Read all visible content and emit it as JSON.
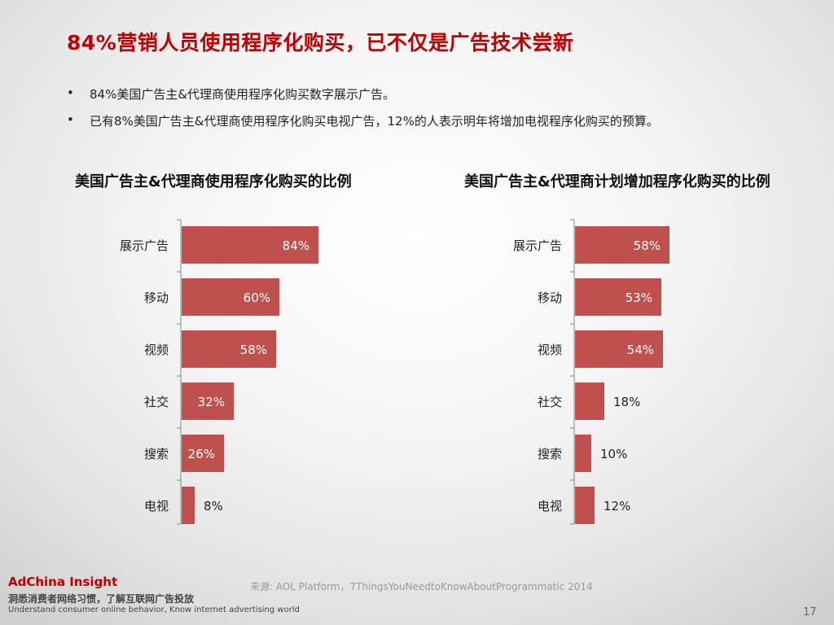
{
  "title": "84%营销人员使用程序化购买，已不仅是广告技术尝新",
  "bullets": [
    "84%美国广告主&代理商使用程序化购买数字展示广告。",
    "已有8%美国广告主&代理商使用程序化购买电视广告，12%的人表示明年将增加电视程序化购买的预算。"
  ],
  "bullet_marker": "•",
  "chart_data": [
    {
      "type": "bar",
      "orientation": "horizontal",
      "title": "美国广告主&代理商使用程序化购买的比例",
      "categories": [
        "展示广告",
        "移动",
        "视频",
        "社交",
        "搜索",
        "电视"
      ],
      "values": [
        84,
        60,
        58,
        32,
        26,
        8
      ],
      "value_labels": [
        "84%",
        "60%",
        "58%",
        "32%",
        "26%",
        "8%"
      ],
      "xlim": [
        0,
        100
      ],
      "bar_color": "#c0504d"
    },
    {
      "type": "bar",
      "orientation": "horizontal",
      "title": "美国广告主&代理商计划增加程序化购买的比例",
      "categories": [
        "展示广告",
        "移动",
        "视频",
        "社交",
        "搜索",
        "电视"
      ],
      "values": [
        58,
        53,
        54,
        18,
        10,
        12
      ],
      "value_labels": [
        "58%",
        "53%",
        "54%",
        "18%",
        "10%",
        "12%"
      ],
      "xlim": [
        0,
        100
      ],
      "bar_color": "#c0504d"
    }
  ],
  "footer": {
    "brand": "AdChina Insight",
    "slogan_cn": "洞悉消费者网络习惯，了解互联网广告投放",
    "slogan_en": "Understand consumer online behavior, Know internet advertising world",
    "source": "来源: AOL Platform，7ThingsYouNeedtoKnowAboutProgrammatic 2014",
    "page_number": "17"
  },
  "colors": {
    "title": "#c00000",
    "bar": "#c0504d",
    "brand": "#c00000"
  }
}
